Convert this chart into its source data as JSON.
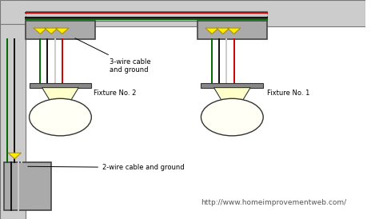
{
  "bg_color": "#ffffff",
  "wire_colors": {
    "black": "#111111",
    "white": "#cccccc",
    "red": "#cc0000",
    "green": "#006600",
    "bare": "#b8860b"
  },
  "label_3wire": "3-wire cable\nand ground",
  "label_2wire": "2-wire cable and ground",
  "fixture1_label": "Fixture No. 1",
  "fixture2_label": "Fixture No. 2",
  "url": "http://www.homeimprovementweb.com/",
  "box_color": "#aaaaaa",
  "conduit_color": "#bbbbbb",
  "yellow_connector": "#ffee00",
  "fixture_base_color": "#888888",
  "wall_color": "#cccccc"
}
